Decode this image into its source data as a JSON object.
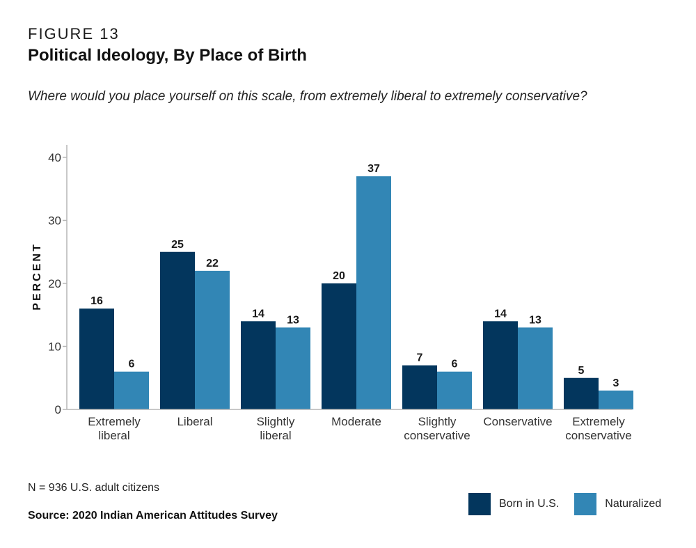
{
  "figure": {
    "label": "FIGURE 13",
    "title": "Political Ideology, By Place of Birth",
    "subtitle": "Where would you place yourself on this scale, from extremely liberal to extremely conservative?"
  },
  "footer": {
    "note": "N = 936 U.S. adult citizens",
    "source": "Source: 2020 Indian American Attitudes Survey"
  },
  "chart_data": {
    "type": "bar",
    "categories": [
      [
        "Extremely",
        "liberal"
      ],
      [
        "Liberal"
      ],
      [
        "Slightly",
        "liberal"
      ],
      [
        "Moderate"
      ],
      [
        "Slightly",
        "conservative"
      ],
      [
        "Conservative"
      ],
      [
        "Extremely",
        "conservative"
      ]
    ],
    "series": [
      {
        "name": "Born in U.S.",
        "color": "#03365d",
        "values": [
          16,
          25,
          14,
          20,
          7,
          14,
          5
        ]
      },
      {
        "name": "Naturalized",
        "color": "#3286b5",
        "values": [
          6,
          22,
          13,
          37,
          6,
          13,
          3
        ]
      }
    ],
    "ylabel": "PERCENT",
    "ylim": [
      0,
      40
    ],
    "yticks": [
      0,
      10,
      20,
      30,
      40
    ],
    "grid": false,
    "data_labels": true,
    "legend_position": "bottom-right"
  }
}
